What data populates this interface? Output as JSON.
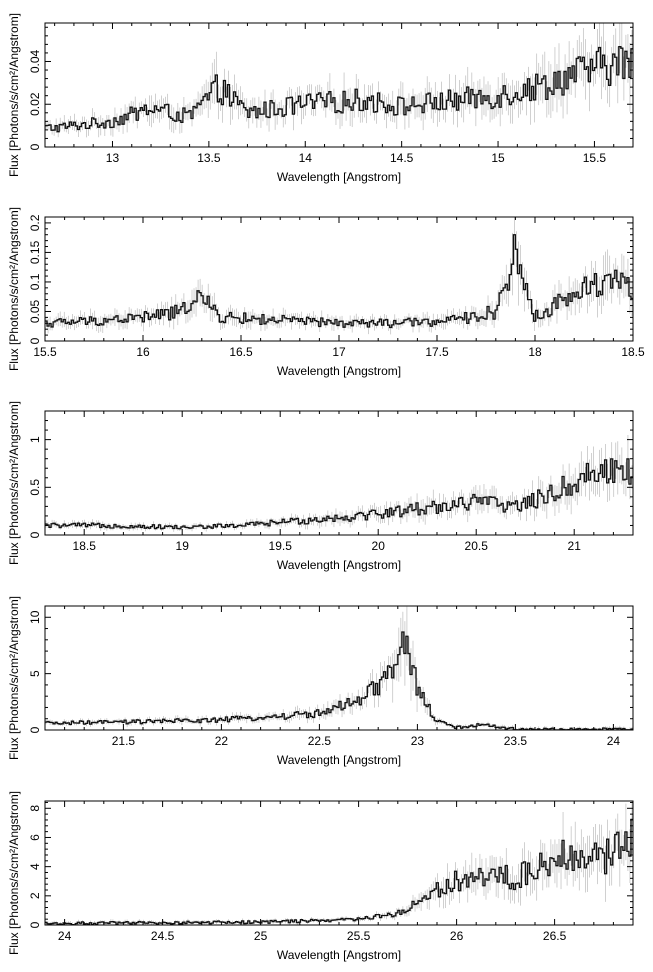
{
  "chart_data": [
    {
      "type": "line",
      "xlabel": "Wavelength [Angstrom]",
      "ylabel": "Flux [Photons/s/cm²/Angstrom]",
      "xlim": [
        12.65,
        15.7
      ],
      "ylim": [
        0,
        0.058
      ],
      "xticks": [
        13,
        13.5,
        14,
        14.5,
        15,
        15.5
      ],
      "xtick_labels": [
        "13",
        "13.5",
        "14",
        "14.5",
        "15",
        "15.5"
      ],
      "yticks": [
        0,
        0.02,
        0.04
      ],
      "ytick_labels": [
        "0",
        "0.02",
        "0.04"
      ],
      "series": [
        {
          "x": [
            12.7,
            13.0,
            13.2,
            13.4,
            13.55,
            13.7,
            14.0,
            14.3,
            14.5,
            14.7,
            15.0,
            15.2,
            15.4,
            15.55,
            15.7
          ],
          "y": [
            0.009,
            0.012,
            0.018,
            0.014,
            0.028,
            0.016,
            0.02,
            0.022,
            0.019,
            0.021,
            0.024,
            0.028,
            0.034,
            0.038,
            0.04
          ]
        }
      ]
    },
    {
      "type": "line",
      "xlabel": "Wavelength [Angstrom]",
      "ylabel": "Flux [Photons/s/cm²/Angstrom]",
      "xlim": [
        15.5,
        18.5
      ],
      "ylim": [
        0,
        0.21
      ],
      "xticks": [
        15.5,
        16,
        16.5,
        17,
        17.5,
        18,
        18.5
      ],
      "xtick_labels": [
        "15.5",
        "16",
        "16.5",
        "17",
        "17.5",
        "18",
        "18.5"
      ],
      "yticks": [
        0,
        0.05,
        0.1,
        0.15,
        0.2
      ],
      "ytick_labels": [
        "0",
        "0.05",
        "0.1",
        "0.15",
        "0.2"
      ],
      "series": [
        {
          "x": [
            15.5,
            15.8,
            16.0,
            16.2,
            16.27,
            16.4,
            16.7,
            17.0,
            17.3,
            17.6,
            17.8,
            17.9,
            18.0,
            18.2,
            18.4,
            18.5
          ],
          "y": [
            0.03,
            0.035,
            0.04,
            0.05,
            0.08,
            0.04,
            0.035,
            0.03,
            0.03,
            0.035,
            0.05,
            0.15,
            0.04,
            0.08,
            0.11,
            0.09
          ]
        }
      ]
    },
    {
      "type": "line",
      "xlabel": "Wavelength [Angstrom]",
      "ylabel": "Flux [Photons/s/cm²/Angstrom]",
      "xlim": [
        18.3,
        21.3
      ],
      "ylim": [
        0,
        1.3
      ],
      "xticks": [
        18.5,
        19,
        19.5,
        20,
        20.5,
        21
      ],
      "xtick_labels": [
        "18.5",
        "19",
        "19.5",
        "20",
        "20.5",
        "21"
      ],
      "yticks": [
        0,
        0.5,
        1
      ],
      "ytick_labels": [
        "0",
        "0.5",
        "1"
      ],
      "series": [
        {
          "x": [
            18.3,
            18.6,
            19.0,
            19.3,
            19.6,
            19.9,
            20.1,
            20.3,
            20.5,
            20.7,
            20.85,
            21.0,
            21.15,
            21.3
          ],
          "y": [
            0.1,
            0.1,
            0.08,
            0.1,
            0.15,
            0.2,
            0.25,
            0.3,
            0.35,
            0.3,
            0.4,
            0.55,
            0.7,
            0.65
          ]
        }
      ]
    },
    {
      "type": "line",
      "xlabel": "Wavelength [Angstrom]",
      "ylabel": "Flux [Photons/s/cm²/Angstrom]",
      "xlim": [
        21.1,
        24.1
      ],
      "ylim": [
        0,
        11
      ],
      "xticks": [
        21.5,
        22,
        22.5,
        23,
        23.5,
        24
      ],
      "xtick_labels": [
        "21.5",
        "22",
        "22.5",
        "23",
        "23.5",
        "24"
      ],
      "yticks": [
        0,
        5,
        10
      ],
      "ytick_labels": [
        "0",
        "5",
        "10"
      ],
      "series": [
        {
          "x": [
            21.1,
            21.5,
            22.0,
            22.3,
            22.5,
            22.7,
            22.85,
            22.9,
            22.95,
            23.0,
            23.1,
            23.2,
            23.33,
            23.5,
            24.1
          ],
          "y": [
            0.6,
            0.7,
            0.9,
            1.2,
            1.5,
            2.5,
            4.5,
            7.0,
            7.5,
            3.5,
            0.8,
            0.2,
            0.5,
            0.05,
            0.05
          ]
        }
      ]
    },
    {
      "type": "line",
      "xlabel": "Wavelength [Angstrom]",
      "ylabel": "Flux [Photons/s/cm²/Angstrom]",
      "xlim": [
        23.9,
        26.9
      ],
      "ylim": [
        0,
        8.5
      ],
      "xticks": [
        24,
        24.5,
        25,
        25.5,
        26,
        26.5
      ],
      "xtick_labels": [
        "24",
        "24.5",
        "25",
        "25.5",
        "26",
        "26.5"
      ],
      "yticks": [
        0,
        2,
        4,
        6,
        8
      ],
      "ytick_labels": [
        "0",
        "2",
        "4",
        "6",
        "8"
      ],
      "series": [
        {
          "x": [
            23.9,
            24.5,
            25.0,
            25.3,
            25.5,
            25.7,
            25.8,
            25.9,
            26.0,
            26.1,
            26.3,
            26.5,
            26.6,
            26.75,
            26.9
          ],
          "y": [
            0.1,
            0.15,
            0.2,
            0.3,
            0.4,
            0.8,
            1.5,
            2.5,
            3.0,
            3.5,
            3.2,
            4.5,
            5.0,
            4.5,
            6.0
          ]
        }
      ]
    }
  ]
}
